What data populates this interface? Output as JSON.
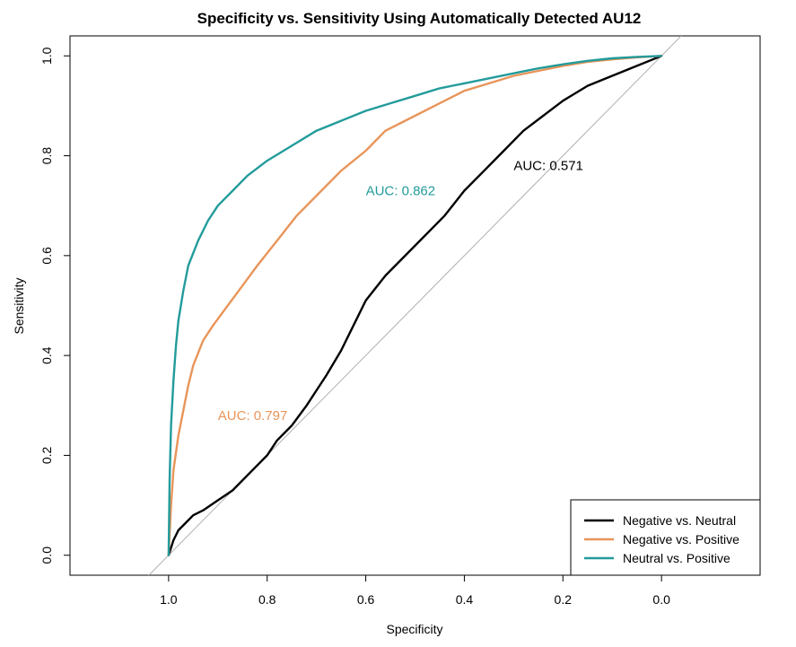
{
  "chart_data": {
    "type": "line",
    "title": "Specificity vs. Sensitivity Using Automatically Detected AU12",
    "xlabel": "Specificity",
    "ylabel": "Sensitivity",
    "x_reversed": true,
    "xlim": [
      1.2,
      -0.2
    ],
    "ylim": [
      -0.04,
      1.04
    ],
    "x_ticks": [
      "1.0",
      "0.8",
      "0.6",
      "0.4",
      "0.2",
      "0.0"
    ],
    "y_ticks": [
      "0.0",
      "0.2",
      "0.4",
      "0.6",
      "0.8",
      "1.0"
    ],
    "legend_position": "bottom-right",
    "diagonal_color": "#b0b0b0",
    "series": [
      {
        "name": "Negative vs. Neutral",
        "color": "#000000",
        "auc_label": "AUC: 0.571",
        "auc_at": [
          0.3,
          0.78
        ],
        "specificity": [
          1.0,
          0.99,
          0.98,
          0.97,
          0.95,
          0.93,
          0.9,
          0.87,
          0.84,
          0.8,
          0.78,
          0.75,
          0.72,
          0.7,
          0.68,
          0.65,
          0.62,
          0.6,
          0.56,
          0.52,
          0.48,
          0.44,
          0.4,
          0.36,
          0.32,
          0.28,
          0.24,
          0.2,
          0.15,
          0.1,
          0.05,
          0.0
        ],
        "sensitivity": [
          0.0,
          0.03,
          0.05,
          0.06,
          0.08,
          0.09,
          0.11,
          0.13,
          0.16,
          0.2,
          0.23,
          0.26,
          0.3,
          0.33,
          0.36,
          0.41,
          0.47,
          0.51,
          0.56,
          0.6,
          0.64,
          0.68,
          0.73,
          0.77,
          0.81,
          0.85,
          0.88,
          0.91,
          0.94,
          0.96,
          0.98,
          1.0
        ]
      },
      {
        "name": "Negative vs. Positive",
        "color": "#e8955a",
        "auc_label": "AUC: 0.797",
        "auc_at": [
          0.9,
          0.28
        ],
        "specificity": [
          1.0,
          0.995,
          0.99,
          0.98,
          0.97,
          0.96,
          0.95,
          0.93,
          0.91,
          0.88,
          0.85,
          0.82,
          0.78,
          0.74,
          0.7,
          0.65,
          0.6,
          0.56,
          0.5,
          0.45,
          0.4,
          0.35,
          0.3,
          0.25,
          0.2,
          0.15,
          0.1,
          0.05,
          0.0
        ],
        "sensitivity": [
          0.0,
          0.1,
          0.17,
          0.24,
          0.29,
          0.34,
          0.38,
          0.43,
          0.46,
          0.5,
          0.54,
          0.58,
          0.63,
          0.68,
          0.72,
          0.77,
          0.81,
          0.85,
          0.88,
          0.905,
          0.93,
          0.945,
          0.96,
          0.97,
          0.98,
          0.988,
          0.993,
          0.997,
          1.0
        ]
      },
      {
        "name": "Neutral vs. Positive",
        "color": "#239b9b",
        "auc_label": "AUC: 0.862",
        "auc_at": [
          0.6,
          0.73
        ],
        "specificity": [
          1.0,
          0.998,
          0.995,
          0.99,
          0.985,
          0.98,
          0.97,
          0.96,
          0.94,
          0.92,
          0.9,
          0.87,
          0.84,
          0.8,
          0.75,
          0.7,
          0.65,
          0.6,
          0.55,
          0.5,
          0.45,
          0.4,
          0.35,
          0.3,
          0.25,
          0.2,
          0.15,
          0.1,
          0.05,
          0.0
        ],
        "sensitivity": [
          0.0,
          0.15,
          0.26,
          0.35,
          0.42,
          0.47,
          0.53,
          0.58,
          0.63,
          0.67,
          0.7,
          0.73,
          0.76,
          0.79,
          0.82,
          0.85,
          0.87,
          0.89,
          0.905,
          0.92,
          0.935,
          0.945,
          0.955,
          0.965,
          0.975,
          0.983,
          0.99,
          0.995,
          0.998,
          1.0
        ]
      }
    ]
  }
}
